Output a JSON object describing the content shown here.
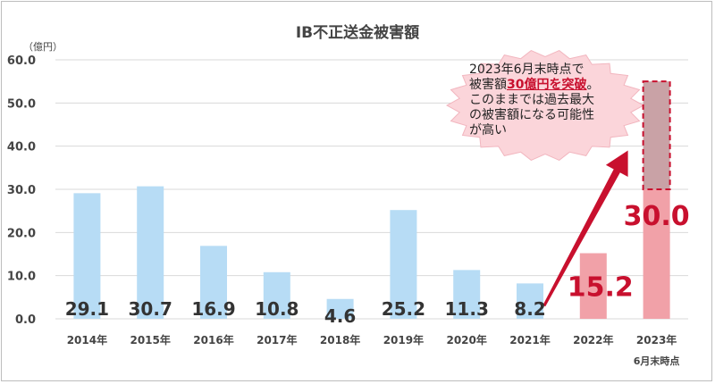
{
  "chart_data": {
    "type": "bar",
    "title": "IB不正送金被害額",
    "ylabel": "（億円）",
    "ylim": [
      0,
      60
    ],
    "yticks": [
      "0.0",
      "10.0",
      "20.0",
      "30.0",
      "40.0",
      "50.0",
      "60.0"
    ],
    "categories": [
      "2014年",
      "2015年",
      "2016年",
      "2017年",
      "2018年",
      "2019年",
      "2020年",
      "2021年",
      "2022年",
      "2023年"
    ],
    "category_sublabels": {
      "2023年": "6月末時点"
    },
    "values": [
      29.1,
      30.7,
      16.9,
      10.8,
      4.6,
      25.2,
      11.3,
      8.2,
      15.2,
      30.0
    ],
    "value_labels": [
      "29.1",
      "30.7",
      "16.9",
      "10.8",
      "4.6",
      "25.2",
      "11.3",
      "8.2",
      "15.2",
      "30.0"
    ],
    "highlighted": [
      "2022年",
      "2023年"
    ],
    "projected": {
      "category": "2023年",
      "from": 30,
      "to": 55
    },
    "grid": true,
    "colors": {
      "bar": "#b7dcf5",
      "bar_highlight": "#f1a1a8",
      "projected_fill": "#c9a2a6",
      "projected_border": "#c8102e",
      "arrow": "#c8102e",
      "highlight_label": "#c8102e",
      "callout_fill": "#fbd5da"
    },
    "annotation": {
      "line1": "2023年6月末時点で",
      "line2_before": "被害額",
      "line2_emph": "30億円を突破",
      "line2_after": "。",
      "line3": "このままでは過去最大",
      "line4": "の被害額になる可能性",
      "line5": "が高い"
    }
  }
}
